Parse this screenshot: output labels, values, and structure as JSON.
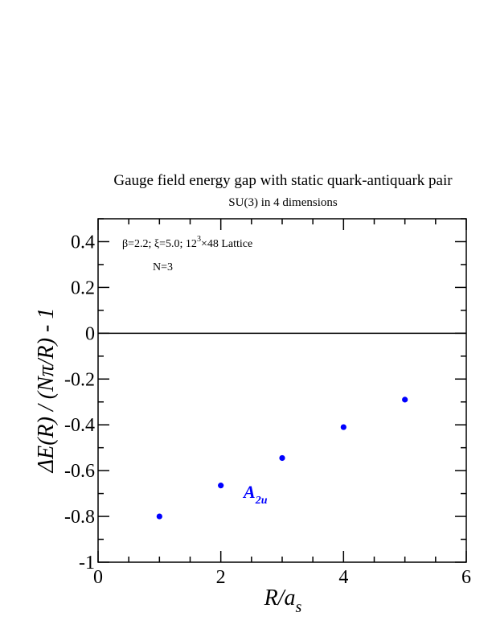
{
  "chart_data": {
    "type": "scatter",
    "title": "Gauge field energy gap with static quark-antiquark pair",
    "subtitle": "SU(3) in 4 dimensions",
    "xlabel": "R/a_s",
    "ylabel": "ΔE(R) / (Nπ/R) - 1",
    "xlim": [
      0,
      6
    ],
    "ylim": [
      -1,
      0.5
    ],
    "x_ticks": [
      "0",
      "2",
      "4",
      "6"
    ],
    "y_ticks": [
      "-1",
      "-0.8",
      "-0.6",
      "-0.4",
      "-0.2",
      "0",
      "0.2",
      "0.4"
    ],
    "annotations": {
      "params_line": "β=2.2; ξ=5.0; 12³×48 Lattice",
      "n_line": "N=3"
    },
    "series": [
      {
        "name": "A_2u",
        "color": "#0000ff",
        "x": [
          1,
          2,
          3,
          4,
          5
        ],
        "y": [
          -0.8,
          -0.665,
          -0.545,
          -0.41,
          -0.29
        ]
      }
    ],
    "reference_line_y": 0,
    "grid": false
  },
  "labels": {
    "xlabel_main": "R/a",
    "xlabel_sub": "s",
    "ylabel_text": "ΔE(R) / (Nπ/R) - 1",
    "series_label_main": "A",
    "series_label_sub": "2u",
    "params_prefix": "β=2.2;  ξ=5.0;  12",
    "params_sup": "3",
    "params_suffix": "×48 Lattice"
  }
}
